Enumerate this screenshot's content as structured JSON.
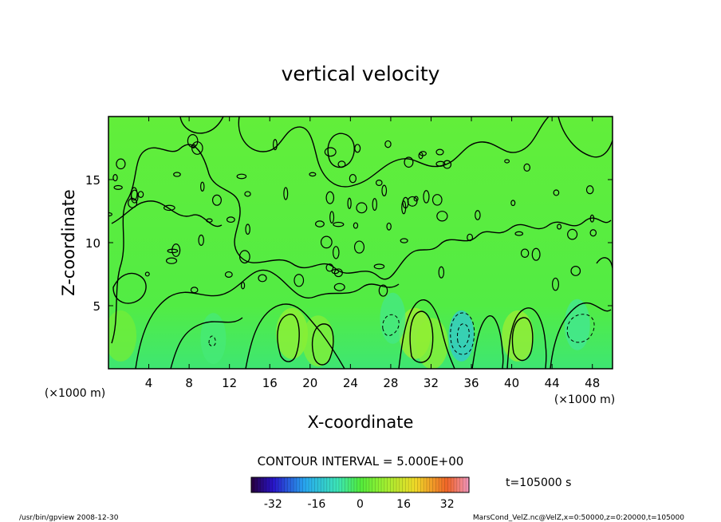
{
  "chart_data": {
    "type": "heatmap",
    "title": "vertical velocity",
    "xlabel": "X-coordinate",
    "ylabel": "Z-coordinate",
    "x_unit_label": "(×1000 m)",
    "x_unit_label_right": "(×1000 m)",
    "xlim": [
      0,
      50
    ],
    "ylim": [
      0,
      20
    ],
    "x_ticks": [
      4,
      8,
      12,
      16,
      20,
      24,
      28,
      32,
      36,
      40,
      44,
      48
    ],
    "y_ticks": [
      5,
      10,
      15
    ],
    "contour_interval_label": "CONTOUR INTERVAL = 5.000E+00",
    "colorbar": {
      "min": -40,
      "max": 40,
      "ticks": [
        -32,
        -16,
        0,
        16,
        32
      ]
    },
    "positive_cells": [
      {
        "x": 18.2,
        "z": 2.8,
        "value": 8
      },
      {
        "x": 20.8,
        "z": 2.2,
        "value": 6
      },
      {
        "x": 30.4,
        "z": 2.8,
        "value": 10
      },
      {
        "x": 32.1,
        "z": 2.0,
        "value": 7
      },
      {
        "x": 40.6,
        "z": 2.6,
        "value": 9
      },
      {
        "x": 1.2,
        "z": 2.6,
        "value": 4
      }
    ],
    "negative_cells": [
      {
        "x": 35.0,
        "z": 2.6,
        "value": -14
      },
      {
        "x": 28.2,
        "z": 4.0,
        "value": -5
      },
      {
        "x": 46.5,
        "z": 3.5,
        "value": -6
      },
      {
        "x": 10.4,
        "z": 2.4,
        "value": -4
      }
    ],
    "time_label": "t=105000 s",
    "footer_left": "/usr/bin/gpview  2008-12-30",
    "footer_right": "MarsCond_VelZ.nc@VelZ,x=0:50000,z=0:20000,t=105000"
  }
}
